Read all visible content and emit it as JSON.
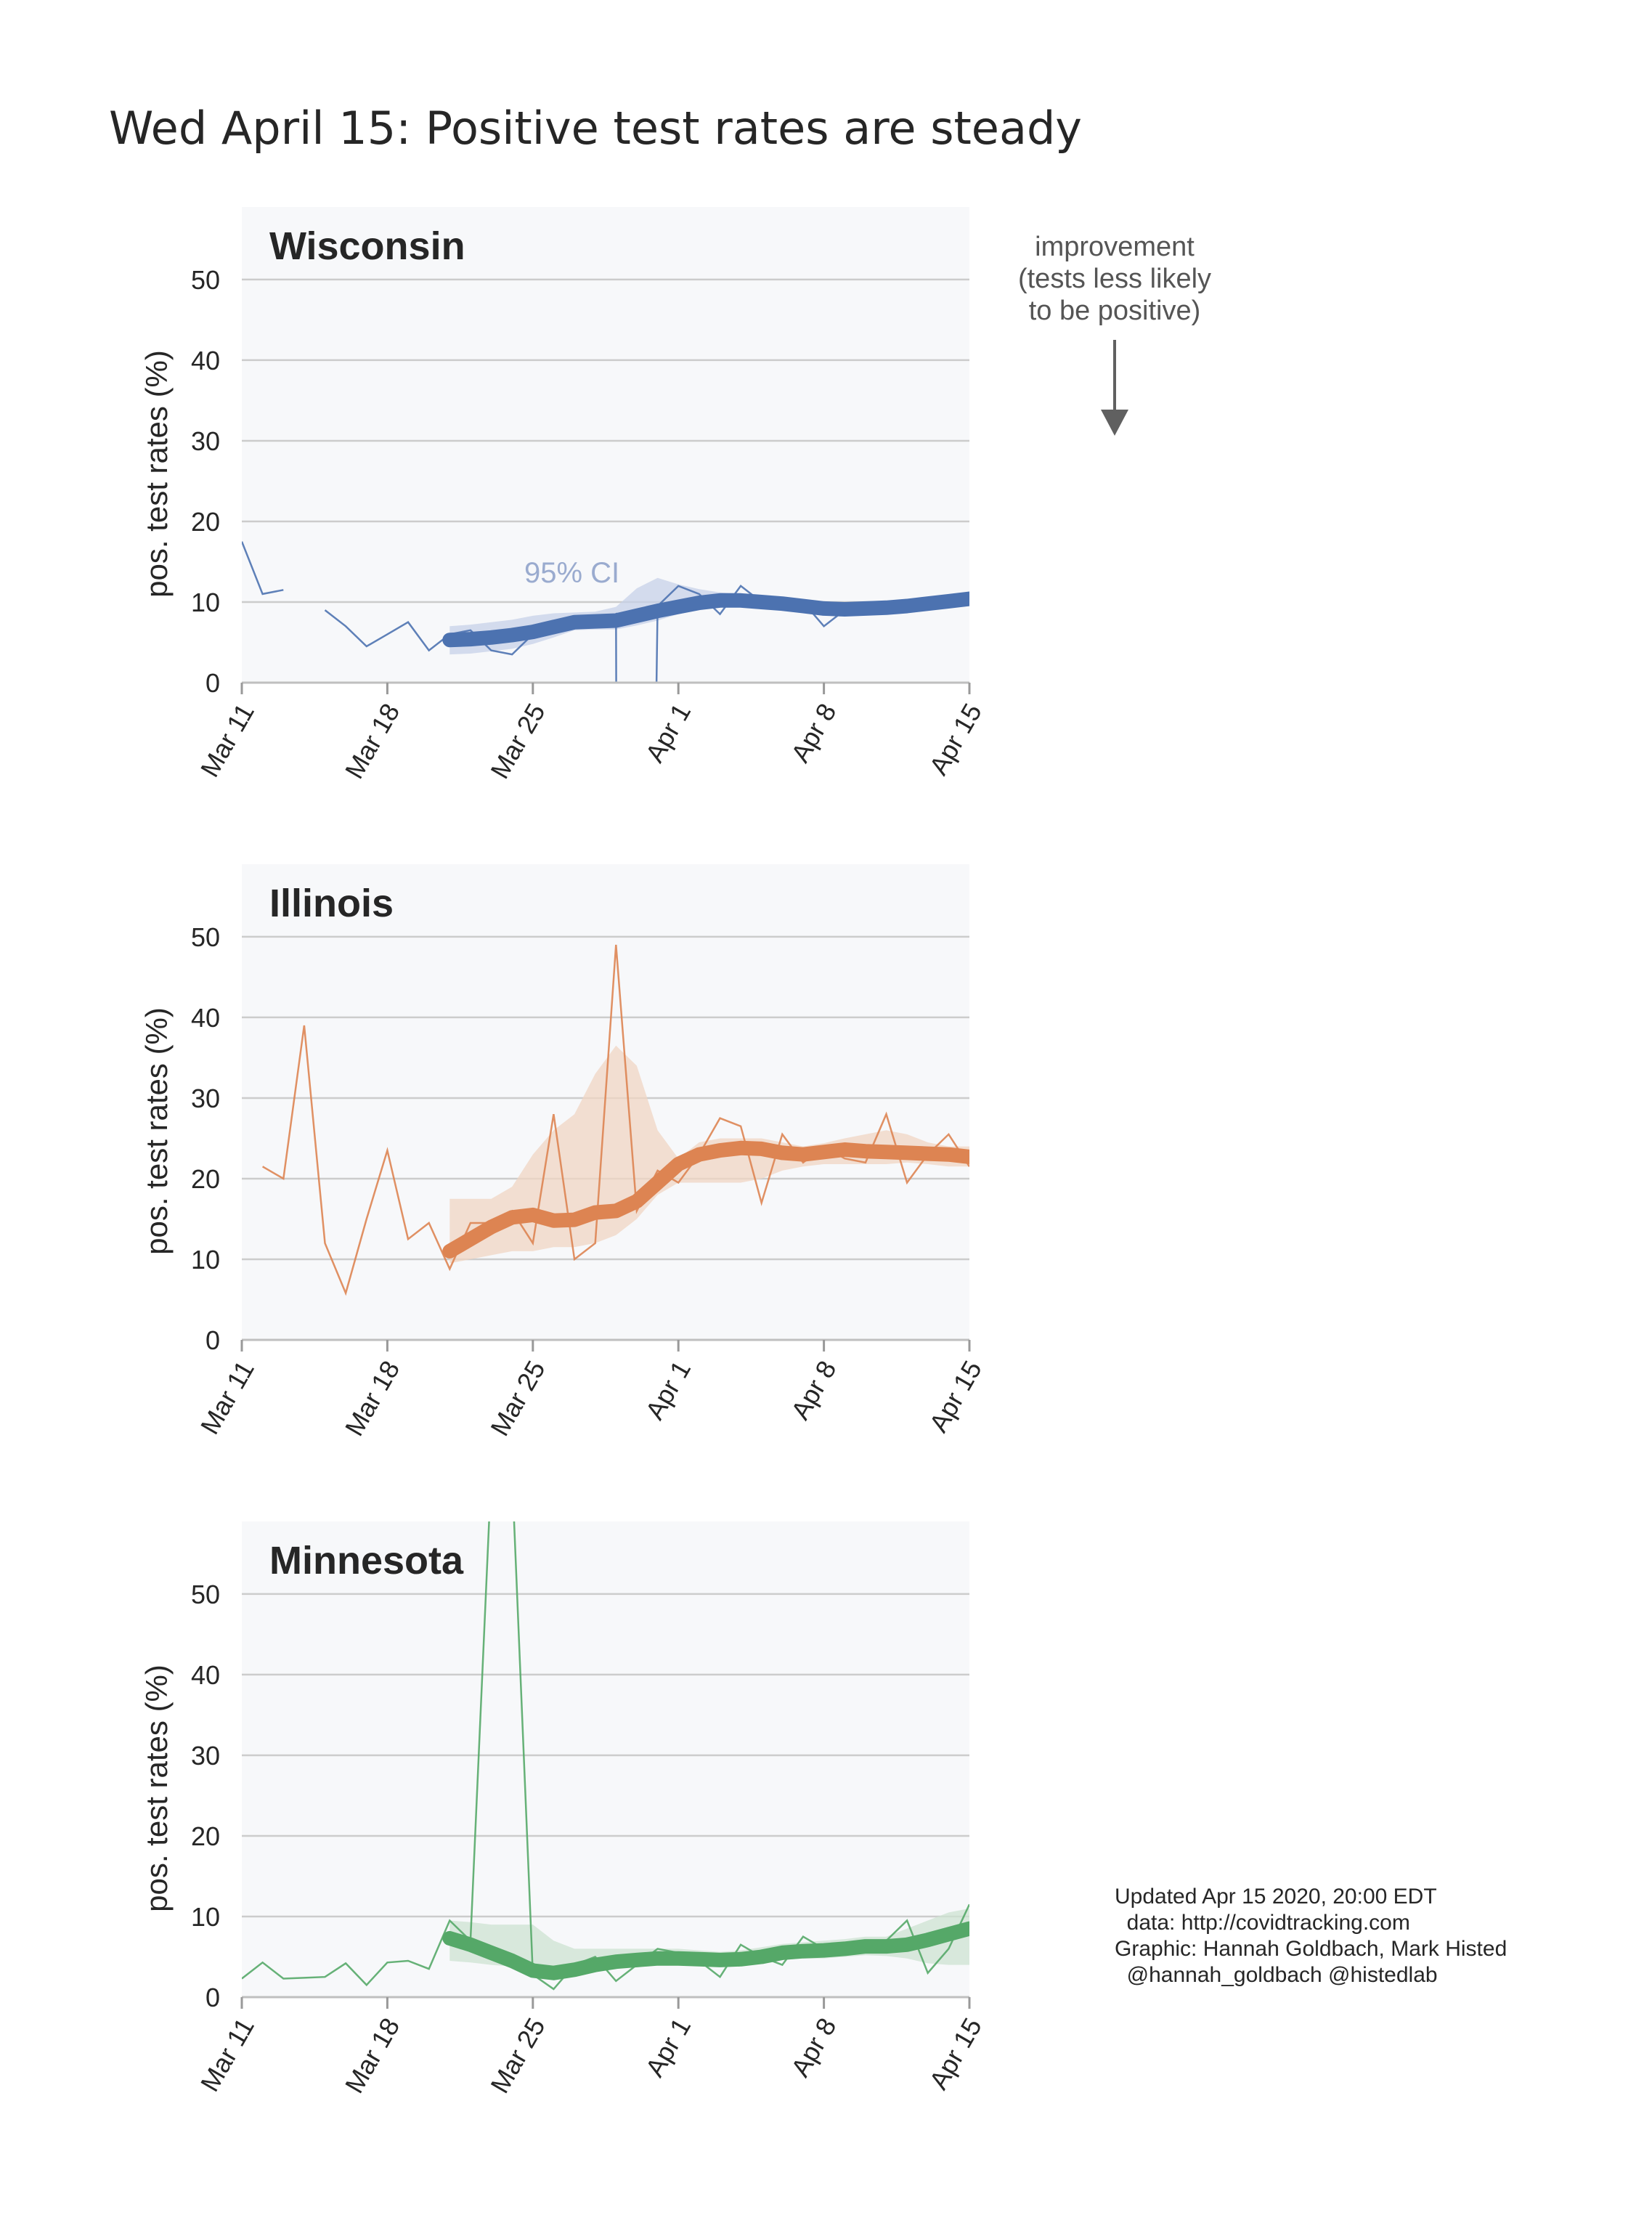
{
  "title": "Wed April 15: Positive test rates are steady",
  "annotation": {
    "lines": [
      "improvement",
      "(tests less likely",
      "to be positive)"
    ],
    "arrow": "down-arrow"
  },
  "ci_label": "95% CI",
  "credits": {
    "lines": [
      "Updated Apr 15 2020, 20:00 EDT",
      "  data: http://covidtracking.com",
      "Graphic: Hannah Goldbach, Mark Histed",
      "  @hannah_goldbach @histedlab"
    ]
  },
  "colors": {
    "panel_bg": "#f7f8fa",
    "grid": "#cccccc"
  },
  "chart_data": [
    {
      "type": "line",
      "state": "Wisconsin",
      "color": "#4c72b0",
      "ci_color": "#c7d2e8",
      "ylabel": "pos. test rates (%)",
      "ylim": [
        0,
        59
      ],
      "yticks": [
        0,
        10,
        20,
        30,
        40,
        50
      ],
      "x_start": "2020-03-11",
      "x_ticks": [
        "Mar 11",
        "Mar 18",
        "Mar 25",
        "Apr 1",
        "Apr 8",
        "Apr 15"
      ],
      "daily": [
        [
          0,
          17.5
        ],
        [
          1,
          11
        ],
        [
          2,
          11.5
        ],
        null,
        [
          4,
          9
        ],
        [
          5,
          7
        ],
        [
          6,
          4.5
        ],
        [
          7,
          6
        ],
        [
          8,
          7.5
        ],
        [
          9,
          4
        ],
        [
          10,
          6
        ],
        [
          11,
          6.5
        ],
        [
          12,
          4
        ],
        [
          13,
          3.5
        ],
        [
          14,
          6
        ],
        [
          15,
          7
        ],
        [
          16,
          7.5
        ],
        [
          17,
          7
        ],
        [
          18,
          8.5
        ],
        [
          18.01,
          0
        ],
        [
          19.95,
          0
        ],
        [
          20,
          9.5
        ],
        [
          21,
          12
        ],
        [
          22,
          11
        ],
        [
          23,
          8.5
        ],
        [
          24,
          12
        ],
        [
          25,
          10
        ],
        [
          26,
          10.5
        ],
        [
          27,
          10
        ],
        [
          28,
          7
        ],
        [
          29,
          9
        ],
        [
          30,
          9.5
        ],
        [
          31,
          9
        ],
        [
          32,
          9.5
        ],
        [
          33,
          10
        ],
        [
          34,
          10.5
        ],
        [
          35,
          10
        ]
      ],
      "smooth": [
        [
          10,
          5.3
        ],
        [
          11,
          5.4
        ],
        [
          12,
          5.6
        ],
        [
          13,
          5.9
        ],
        [
          14,
          6.3
        ],
        [
          15,
          6.9
        ],
        [
          16,
          7.5
        ],
        [
          17,
          7.6
        ],
        [
          18,
          7.7
        ],
        [
          19,
          8.3
        ],
        [
          20,
          8.9
        ],
        [
          21,
          9.4
        ],
        [
          22,
          9.9
        ],
        [
          23,
          10.2
        ],
        [
          24,
          10.2
        ],
        [
          25,
          10.0
        ],
        [
          26,
          9.8
        ],
        [
          27,
          9.5
        ],
        [
          28,
          9.2
        ],
        [
          29,
          9.1
        ],
        [
          30,
          9.2
        ],
        [
          31,
          9.3
        ],
        [
          32,
          9.5
        ],
        [
          33,
          9.8
        ],
        [
          34,
          10.1
        ],
        [
          35,
          10.4
        ]
      ],
      "ci_band": [
        [
          10,
          3.5,
          7
        ],
        [
          11,
          3.6,
          7.2
        ],
        [
          12,
          3.9,
          7.5
        ],
        [
          13,
          4.2,
          7.8
        ],
        [
          14,
          4.8,
          8.3
        ],
        [
          15,
          5.6,
          8.6
        ],
        [
          16,
          6.5,
          8.7
        ],
        [
          17,
          6.6,
          8.8
        ],
        [
          18,
          6.6,
          9.4
        ],
        [
          19,
          7.1,
          11.7
        ],
        [
          20,
          7.7,
          13
        ],
        [
          21,
          8.5,
          12.2
        ],
        [
          22,
          9.0,
          11.6
        ],
        [
          23,
          9.5,
          11.2
        ],
        [
          24,
          9.4,
          11.0
        ],
        [
          25,
          9.2,
          10.8
        ],
        [
          26,
          9.0,
          10.6
        ],
        [
          27,
          8.7,
          10.3
        ],
        [
          28,
          8.4,
          10.0
        ],
        [
          29,
          8.4,
          9.9
        ],
        [
          30,
          8.5,
          10.0
        ],
        [
          31,
          8.6,
          10.1
        ],
        [
          32,
          8.8,
          10.3
        ],
        [
          33,
          9.1,
          10.6
        ],
        [
          34,
          9.4,
          10.9
        ],
        [
          35,
          9.6,
          11.2
        ]
      ]
    },
    {
      "type": "line",
      "state": "Illinois",
      "color": "#dd8452",
      "ci_color": "#f0d5c3",
      "ylabel": "pos. test rates (%)",
      "ylim": [
        0,
        59
      ],
      "yticks": [
        0,
        10,
        20,
        30,
        40,
        50
      ],
      "x_start": "2020-03-11",
      "x_ticks": [
        "Mar 11",
        "Mar 18",
        "Mar 25",
        "Apr 1",
        "Apr 8",
        "Apr 15"
      ],
      "daily": [
        [
          1,
          21.5
        ],
        [
          2,
          20
        ],
        [
          3,
          39
        ],
        [
          4,
          12
        ],
        [
          5,
          5.8
        ],
        [
          6,
          15
        ],
        [
          7,
          23.5
        ],
        [
          8,
          12.5
        ],
        [
          9,
          14.5
        ],
        [
          10,
          8.8
        ],
        [
          11,
          14.5
        ],
        [
          12,
          14.5
        ],
        [
          13,
          16
        ],
        [
          14,
          12
        ],
        [
          15,
          28
        ],
        [
          16,
          10
        ],
        [
          17,
          12
        ],
        [
          18,
          49
        ],
        [
          19,
          16
        ],
        [
          20,
          21
        ],
        [
          21,
          19.5
        ],
        [
          22,
          23
        ],
        [
          23,
          27.5
        ],
        [
          24,
          26.5
        ],
        [
          25,
          17
        ],
        [
          26,
          25.5
        ],
        [
          27,
          22
        ],
        [
          28,
          24
        ],
        [
          29,
          22.5
        ],
        [
          30,
          22
        ],
        [
          31,
          28
        ],
        [
          32,
          19.5
        ],
        [
          33,
          23
        ],
        [
          34,
          25.5
        ],
        [
          35,
          21.5
        ]
      ],
      "smooth": [
        [
          10,
          11
        ],
        [
          11,
          12.5
        ],
        [
          12,
          14
        ],
        [
          13,
          15.2
        ],
        [
          14,
          15.5
        ],
        [
          15,
          14.8
        ],
        [
          16,
          14.9
        ],
        [
          17,
          15.8
        ],
        [
          18,
          16
        ],
        [
          19,
          17.2
        ],
        [
          20,
          19.5
        ],
        [
          21,
          21.8
        ],
        [
          22,
          23
        ],
        [
          23,
          23.5
        ],
        [
          24,
          23.8
        ],
        [
          25,
          23.7
        ],
        [
          26,
          23.2
        ],
        [
          27,
          23.0
        ],
        [
          28,
          23.3
        ],
        [
          29,
          23.6
        ],
        [
          30,
          23.4
        ],
        [
          31,
          23.3
        ],
        [
          32,
          23.2
        ],
        [
          33,
          23.1
        ],
        [
          34,
          23.0
        ],
        [
          35,
          22.7
        ]
      ],
      "ci_band": [
        [
          10,
          9.5,
          17.5
        ],
        [
          11,
          10,
          17.5
        ],
        [
          12,
          10.5,
          17.5
        ],
        [
          13,
          11,
          19
        ],
        [
          14,
          11,
          23
        ],
        [
          15,
          11.5,
          26
        ],
        [
          16,
          11.5,
          28
        ],
        [
          17,
          12,
          33
        ],
        [
          18,
          13,
          36.5
        ],
        [
          19,
          15,
          34
        ],
        [
          20,
          18,
          26
        ],
        [
          21,
          19.5,
          22.5
        ],
        [
          22,
          19.5,
          24.5
        ],
        [
          23,
          19.5,
          25
        ],
        [
          24,
          19.5,
          25
        ],
        [
          25,
          20,
          25
        ],
        [
          26,
          21,
          24.5
        ],
        [
          27,
          21.5,
          24
        ],
        [
          28,
          21.8,
          24.4
        ],
        [
          29,
          21.8,
          25
        ],
        [
          30,
          21.8,
          25.5
        ],
        [
          31,
          21.8,
          26
        ],
        [
          32,
          22,
          25.5
        ],
        [
          33,
          21.8,
          24.5
        ],
        [
          34,
          21.5,
          24
        ],
        [
          35,
          21.5,
          24
        ]
      ]
    },
    {
      "type": "line",
      "state": "Minnesota",
      "color": "#55a868",
      "ci_color": "#cde3d2",
      "ylabel": "pos. test rates (%)",
      "ylim": [
        0,
        59
      ],
      "yticks": [
        0,
        10,
        20,
        30,
        40,
        50
      ],
      "x_start": "2020-03-11",
      "x_ticks": [
        "Mar 11",
        "Mar 18",
        "Mar 25",
        "Apr 1",
        "Apr 8",
        "Apr 15"
      ],
      "daily": [
        [
          0,
          2.3
        ],
        [
          1,
          4.3
        ],
        [
          2,
          2.3
        ],
        [
          3,
          2.4
        ],
        [
          4,
          2.5
        ],
        [
          5,
          4.2
        ],
        [
          6,
          1.5
        ],
        [
          7,
          4.3
        ],
        [
          8,
          4.5
        ],
        [
          9,
          3.5
        ],
        [
          10,
          9.5
        ],
        [
          11,
          7
        ],
        [
          12,
          65
        ],
        [
          13,
          65
        ],
        [
          14,
          2.8
        ],
        [
          15,
          1
        ],
        [
          16,
          4
        ],
        [
          17,
          5
        ],
        [
          18,
          2
        ],
        [
          19,
          4
        ],
        [
          20,
          6
        ],
        [
          21,
          5.5
        ],
        [
          22,
          4.5
        ],
        [
          23,
          2.5
        ],
        [
          24,
          6.5
        ],
        [
          25,
          5
        ],
        [
          26,
          4
        ],
        [
          27,
          7.5
        ],
        [
          28,
          6
        ],
        [
          29,
          6.5
        ],
        [
          30,
          6
        ],
        [
          31,
          7
        ],
        [
          32,
          9.5
        ],
        [
          33,
          3
        ],
        [
          34,
          6
        ],
        [
          35,
          11.5
        ]
      ],
      "smooth": [
        [
          10,
          7.3
        ],
        [
          11,
          6.5
        ],
        [
          12,
          5.5
        ],
        [
          13,
          4.5
        ],
        [
          14,
          3.3
        ],
        [
          15,
          3.0
        ],
        [
          16,
          3.4
        ],
        [
          17,
          4
        ],
        [
          18,
          4.4
        ],
        [
          19,
          4.6
        ],
        [
          20,
          4.8
        ],
        [
          21,
          4.8
        ],
        [
          22,
          4.7
        ],
        [
          23,
          4.6
        ],
        [
          24,
          4.7
        ],
        [
          25,
          5.0
        ],
        [
          26,
          5.5
        ],
        [
          27,
          5.7
        ],
        [
          28,
          5.8
        ],
        [
          29,
          6.0
        ],
        [
          30,
          6.3
        ],
        [
          31,
          6.3
        ],
        [
          32,
          6.5
        ],
        [
          33,
          7.1
        ],
        [
          34,
          7.8
        ],
        [
          35,
          8.5
        ]
      ],
      "ci_band": [
        [
          10,
          4.5,
          9.5
        ],
        [
          11,
          4.3,
          9.3
        ],
        [
          12,
          4,
          9
        ],
        [
          13,
          3.8,
          9
        ],
        [
          14,
          3.6,
          9
        ],
        [
          15,
          3.5,
          7
        ],
        [
          16,
          3.5,
          6
        ],
        [
          17,
          3.8,
          6
        ],
        [
          18,
          4,
          6
        ],
        [
          19,
          4.1,
          6
        ],
        [
          20,
          4.2,
          6
        ],
        [
          21,
          4.2,
          6
        ],
        [
          22,
          4.1,
          5.8
        ],
        [
          23,
          4,
          5.6
        ],
        [
          24,
          4,
          5.8
        ],
        [
          25,
          4.3,
          6.2
        ],
        [
          26,
          4.6,
          6.6
        ],
        [
          27,
          4.8,
          6.8
        ],
        [
          28,
          4.8,
          7
        ],
        [
          29,
          5,
          7.2
        ],
        [
          30,
          5.2,
          7.5
        ],
        [
          31,
          5.1,
          7.5
        ],
        [
          32,
          4.8,
          8.5
        ],
        [
          33,
          4.2,
          9.5
        ],
        [
          34,
          4,
          10.5
        ],
        [
          35,
          4,
          11
        ]
      ]
    }
  ]
}
